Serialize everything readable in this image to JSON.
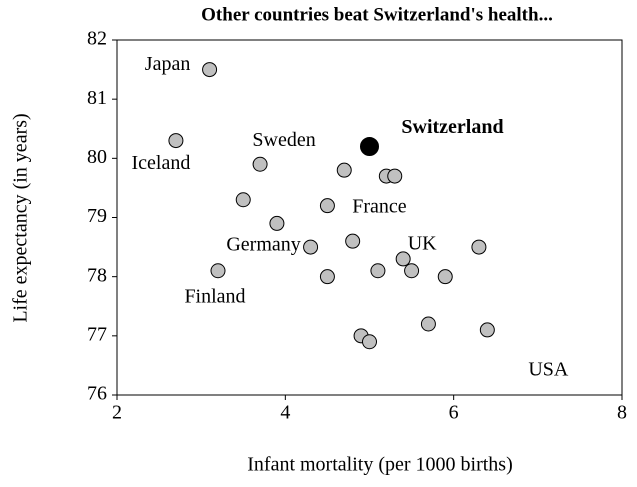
{
  "chart_data": {
    "type": "scatter",
    "title": "Other countries beat Switzerland's health...",
    "x_label": "Infant mortality (per 1000 births)",
    "y_label": "Life expectancy (in years)",
    "xlim": [
      2,
      8
    ],
    "xticks": [
      2,
      4,
      6,
      8
    ],
    "ylim": [
      76,
      82
    ],
    "yticks": [
      76,
      77,
      78,
      79,
      80,
      81,
      82
    ],
    "grid": false,
    "series": [
      {
        "color": "#c0c0c0",
        "x": [
          3.1,
          2.7,
          3.7,
          3.5,
          3.9,
          4.3,
          3.2,
          4.5,
          4.5,
          4.7,
          5.2,
          5.3,
          4.8,
          5.1,
          5.4,
          5.5,
          5.9,
          6.3,
          5.7,
          4.9,
          5.0,
          6.4
        ],
        "values": [
          81.5,
          80.3,
          79.9,
          79.3,
          78.9,
          78.5,
          78.1,
          78.0,
          79.2,
          79.8,
          79.7,
          79.7,
          78.6,
          78.1,
          78.3,
          78.1,
          78.0,
          78.5,
          77.2,
          77.0,
          76.9,
          77.1
        ],
        "labels": [
          "Japan",
          "Iceland",
          "Sweden",
          null,
          null,
          "Germany",
          "Finland",
          null,
          "France",
          null,
          null,
          null,
          null,
          null,
          "UK",
          null,
          null,
          null,
          null,
          null,
          null,
          "USA"
        ]
      },
      {
        "color": "#000000",
        "x": [
          5.0
        ],
        "values": [
          80.2
        ],
        "labels": [
          "Switzerland"
        ]
      }
    ]
  }
}
